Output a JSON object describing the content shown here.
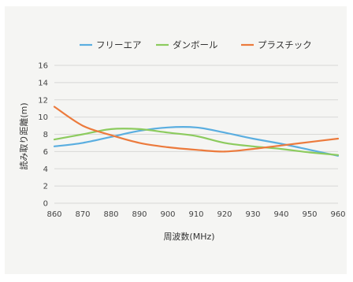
{
  "chart_data": {
    "type": "line",
    "title": "",
    "xlabel": "周波数(MHz)",
    "ylabel": "読み取り距離(m)",
    "x": [
      860,
      870,
      880,
      890,
      900,
      910,
      920,
      930,
      940,
      950,
      960
    ],
    "xlim": [
      860,
      960
    ],
    "ylim": [
      0,
      16
    ],
    "xticks": [
      860,
      870,
      880,
      890,
      900,
      910,
      920,
      930,
      940,
      950,
      960
    ],
    "yticks": [
      0,
      2,
      4,
      6,
      8,
      10,
      12,
      14,
      16
    ],
    "grid": true,
    "legend_position": "top",
    "series": [
      {
        "name": "フリーエア",
        "color": "#5aaee0",
        "values": [
          6.6,
          7.0,
          7.7,
          8.4,
          8.8,
          8.8,
          8.2,
          7.5,
          6.9,
          6.2,
          5.5
        ]
      },
      {
        "name": "ダンボール",
        "color": "#8ccb5e",
        "values": [
          7.4,
          8.0,
          8.6,
          8.6,
          8.2,
          7.8,
          7.0,
          6.6,
          6.3,
          5.9,
          5.6
        ]
      },
      {
        "name": "プラスチック",
        "color": "#ec7a3c",
        "values": [
          11.2,
          9.0,
          7.9,
          7.0,
          6.5,
          6.2,
          6.0,
          6.3,
          6.7,
          7.1,
          7.5
        ]
      }
    ]
  }
}
